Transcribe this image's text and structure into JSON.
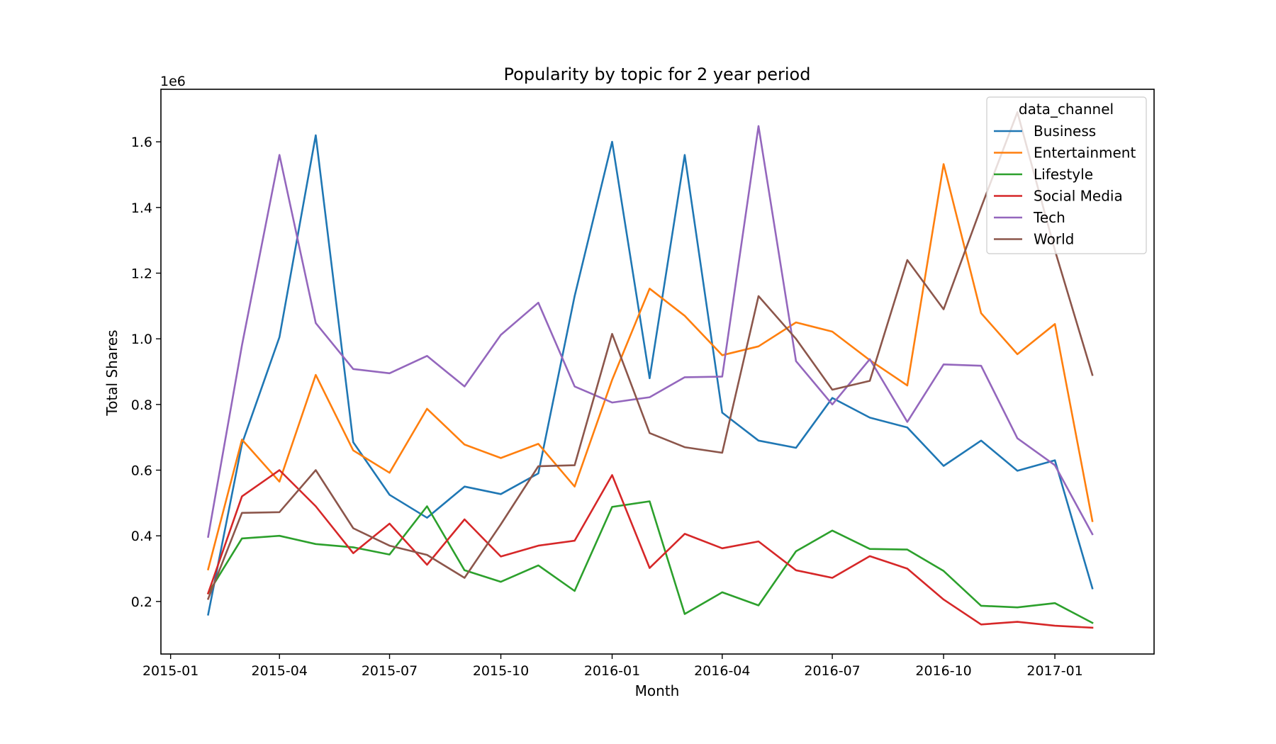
{
  "chart_data": {
    "type": "line",
    "title": "Popularity by topic for 2 year period",
    "xlabel": "Month",
    "ylabel": "Total Shares",
    "y_offset_label": "1e6",
    "x_ticks": [
      "2015-01",
      "2015-04",
      "2015-07",
      "2015-10",
      "2016-01",
      "2016-04",
      "2016-07",
      "2016-10",
      "2017-01"
    ],
    "y_ticks": [
      "0.2",
      "0.4",
      "0.6",
      "0.8",
      "1.0",
      "1.2",
      "1.4",
      "1.6"
    ],
    "y_tick_values": [
      0.2,
      0.4,
      0.6,
      0.8,
      1.0,
      1.2,
      1.4,
      1.6
    ],
    "xlim": [
      "2014-12-24",
      "2017-03-24"
    ],
    "ylim": [
      0.04,
      1.76
    ],
    "y_scale": 1000000,
    "grid": false,
    "legend": {
      "title": "data_channel",
      "placement": "top-right"
    },
    "x": [
      "2015-02",
      "2015-03",
      "2015-04",
      "2015-05",
      "2015-06",
      "2015-07",
      "2015-08",
      "2015-09",
      "2015-10",
      "2015-11",
      "2015-12",
      "2016-01",
      "2016-02",
      "2016-03",
      "2016-04",
      "2016-05",
      "2016-06",
      "2016-07",
      "2016-08",
      "2016-09",
      "2016-10",
      "2016-11",
      "2016-12",
      "2017-01",
      "2017-02"
    ],
    "series": [
      {
        "name": "Business",
        "color": "#1f77b4",
        "values": [
          0.16,
          0.68,
          1.005,
          1.62,
          0.685,
          0.525,
          0.455,
          0.55,
          0.527,
          0.59,
          1.13,
          1.6,
          0.88,
          1.56,
          0.775,
          0.69,
          0.668,
          0.82,
          0.76,
          0.73,
          0.613,
          0.69,
          0.598,
          0.63,
          0.24
        ]
      },
      {
        "name": "Entertainment",
        "color": "#ff7f0e",
        "values": [
          0.298,
          0.693,
          0.565,
          0.89,
          0.66,
          0.592,
          0.787,
          0.678,
          0.637,
          0.68,
          0.55,
          0.875,
          1.153,
          1.07,
          0.95,
          0.977,
          1.05,
          1.022,
          0.935,
          0.858,
          1.532,
          1.078,
          0.953,
          1.045,
          0.445
        ]
      },
      {
        "name": "Lifestyle",
        "color": "#2ca02c",
        "values": [
          0.225,
          0.392,
          0.4,
          0.375,
          0.365,
          0.343,
          0.49,
          0.295,
          0.26,
          0.31,
          0.232,
          0.488,
          0.505,
          0.162,
          0.228,
          0.188,
          0.353,
          0.416,
          0.36,
          0.358,
          0.293,
          0.187,
          0.182,
          0.195,
          0.135
        ]
      },
      {
        "name": "Social Media",
        "color": "#d62728",
        "values": [
          0.225,
          0.52,
          0.6,
          0.49,
          0.347,
          0.437,
          0.312,
          0.45,
          0.337,
          0.37,
          0.385,
          0.585,
          0.302,
          0.406,
          0.362,
          0.383,
          0.295,
          0.272,
          0.338,
          0.3,
          0.206,
          0.13,
          0.138,
          0.126,
          0.12
        ]
      },
      {
        "name": "Tech",
        "color": "#9467bd",
        "values": [
          0.397,
          0.98,
          1.56,
          1.048,
          0.908,
          0.895,
          0.948,
          0.855,
          1.012,
          1.11,
          0.855,
          0.806,
          0.822,
          0.883,
          0.885,
          1.648,
          0.932,
          0.8,
          0.938,
          0.747,
          0.922,
          0.918,
          0.697,
          0.615,
          0.405
        ]
      },
      {
        "name": "World",
        "color": "#8c564b",
        "values": [
          0.208,
          0.47,
          0.472,
          0.6,
          0.423,
          0.37,
          0.342,
          0.272,
          0.435,
          0.612,
          0.615,
          1.015,
          0.713,
          0.67,
          0.653,
          1.13,
          1.0,
          0.845,
          0.872,
          1.24,
          1.09,
          1.4,
          1.69,
          1.27,
          0.89
        ]
      }
    ]
  }
}
